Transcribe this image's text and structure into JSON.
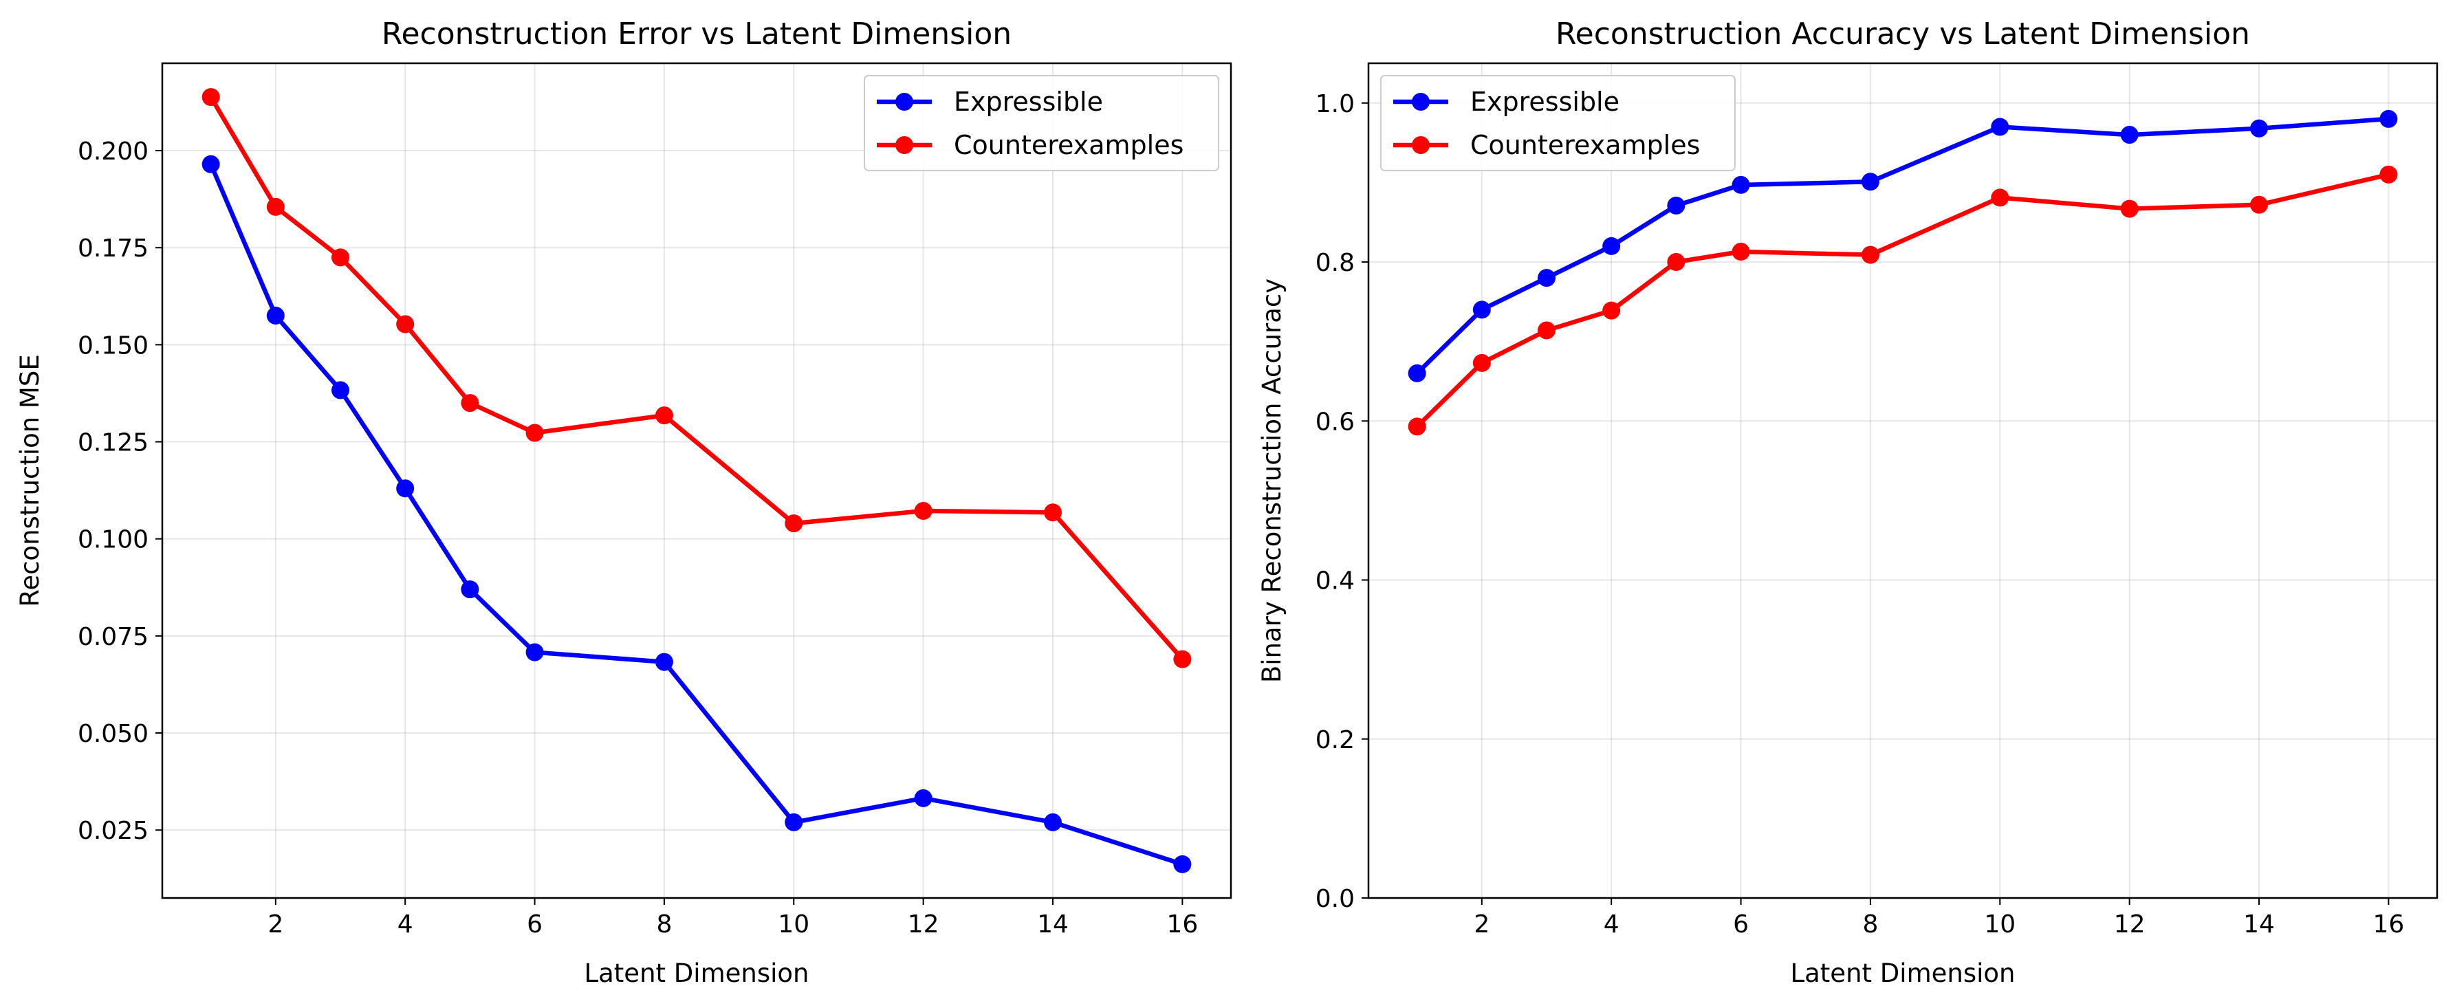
{
  "chart_data": [
    {
      "type": "line",
      "title": "Reconstruction Error vs Latent Dimension",
      "xlabel": "Latent Dimension",
      "ylabel": "Reconstruction MSE",
      "x": [
        1,
        2,
        3,
        4,
        5,
        6,
        8,
        10,
        12,
        14,
        16
      ],
      "xticks": [
        2,
        4,
        6,
        8,
        10,
        12,
        14,
        16
      ],
      "yticks": [
        0.025,
        0.05,
        0.075,
        0.1,
        0.125,
        0.15,
        0.175,
        0.2
      ],
      "ytick_labels": [
        "0.025",
        "0.050",
        "0.075",
        "0.100",
        "0.125",
        "0.150",
        "0.175",
        "0.200"
      ],
      "xlim": [
        0.25,
        16.75
      ],
      "ylim": [
        0.0075,
        0.2225
      ],
      "grid": true,
      "legend_position": "top-right",
      "series": [
        {
          "name": "Expressible",
          "color": "#0000ff",
          "values": [
            0.1965,
            0.1575,
            0.1383,
            0.113,
            0.087,
            0.0708,
            0.0683,
            0.027,
            0.0332,
            0.027,
            0.0162
          ]
        },
        {
          "name": "Counterexamples",
          "color": "#ff0000",
          "values": [
            0.2138,
            0.1855,
            0.1725,
            0.1553,
            0.135,
            0.1273,
            0.1318,
            0.104,
            0.1072,
            0.1068,
            0.069
          ]
        }
      ]
    },
    {
      "type": "line",
      "title": "Reconstruction Accuracy vs Latent Dimension",
      "xlabel": "Latent Dimension",
      "ylabel": "Binary Reconstruction Accuracy",
      "x": [
        1,
        2,
        3,
        4,
        5,
        6,
        8,
        10,
        12,
        14,
        16
      ],
      "xticks": [
        2,
        4,
        6,
        8,
        10,
        12,
        14,
        16
      ],
      "yticks": [
        0.0,
        0.2,
        0.4,
        0.6,
        0.8,
        1.0
      ],
      "ytick_labels": [
        "0.0",
        "0.2",
        "0.4",
        "0.6",
        "0.8",
        "1.0"
      ],
      "xlim": [
        0.25,
        16.75
      ],
      "ylim": [
        0.0,
        1.05
      ],
      "grid": true,
      "legend_position": "top-left",
      "series": [
        {
          "name": "Expressible",
          "color": "#0000ff",
          "values": [
            0.66,
            0.74,
            0.78,
            0.82,
            0.871,
            0.897,
            0.901,
            0.97,
            0.96,
            0.968,
            0.98
          ]
        },
        {
          "name": "Counterexamples",
          "color": "#ff0000",
          "values": [
            0.593,
            0.673,
            0.714,
            0.739,
            0.8,
            0.813,
            0.809,
            0.881,
            0.867,
            0.872,
            0.91
          ]
        }
      ]
    }
  ]
}
